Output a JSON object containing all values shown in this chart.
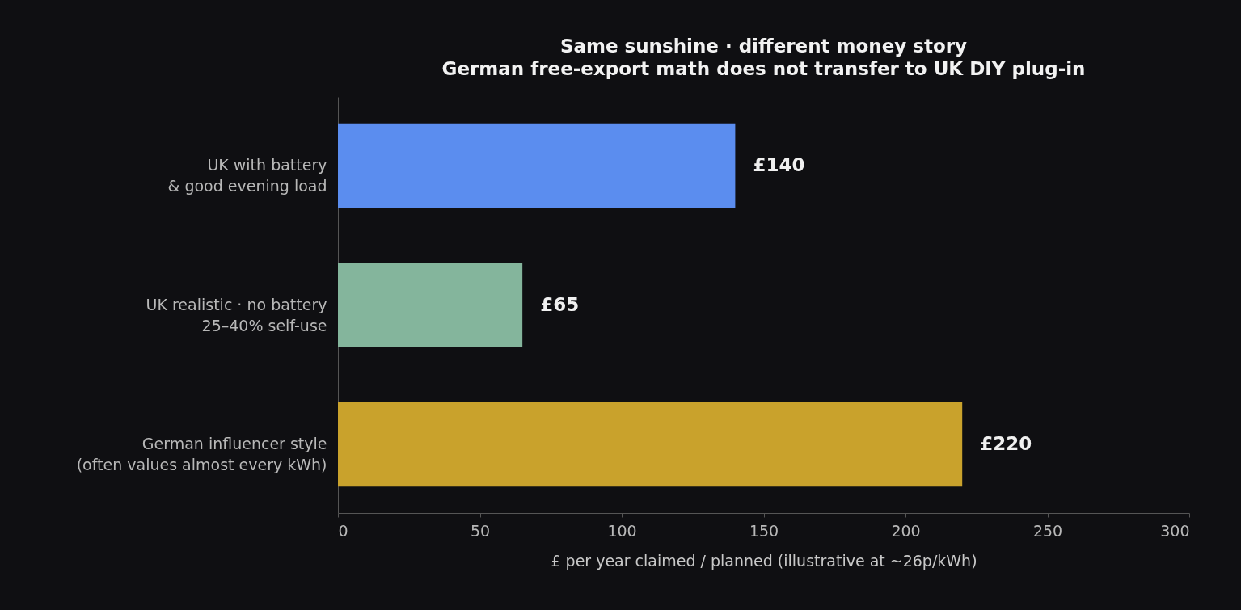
{
  "chart_data": {
    "type": "bar",
    "orientation": "horizontal",
    "title": "Same sunshine · different money story",
    "subtitle": "German free-export math does not transfer to UK DIY plug-in",
    "categories": [
      "UK with battery\n& good evening load",
      "UK realistic · no battery\n25–40% self-use",
      "German influencer style\n(often values almost every kWh)"
    ],
    "values": [
      140,
      65,
      220
    ],
    "value_labels": [
      "£140",
      "£65",
      "£220"
    ],
    "colors": [
      "#5b8def",
      "#84b59c",
      "#c9a22c"
    ],
    "xlabel": "£ per year claimed / planned  (illustrative at ~26p/kWh)",
    "xlim": [
      0,
      300
    ],
    "xticks": [
      0,
      50,
      100,
      150,
      200,
      250,
      300
    ],
    "grid": false,
    "legend": false
  }
}
